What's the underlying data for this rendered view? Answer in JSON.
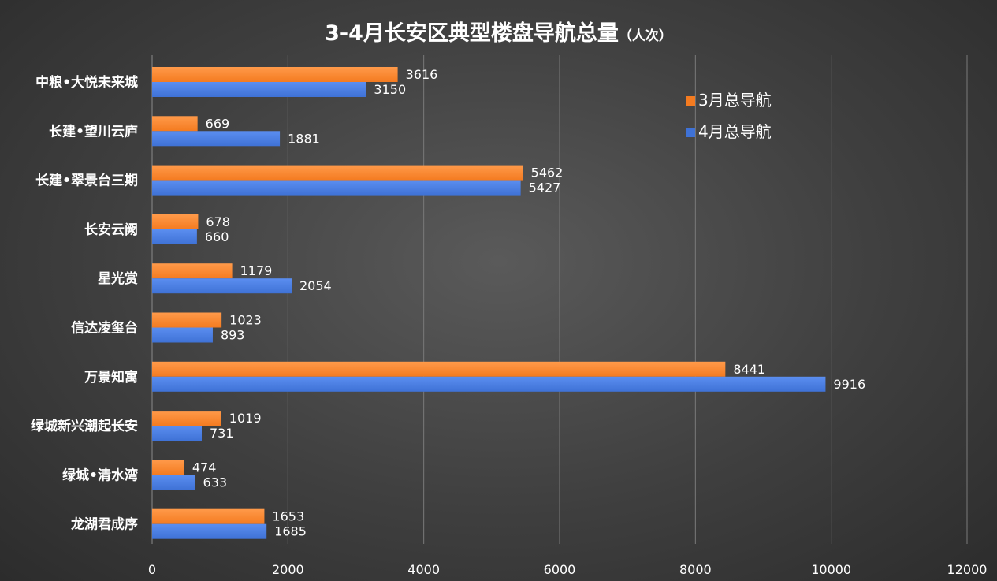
{
  "chart_data": {
    "type": "bar",
    "orientation": "horizontal",
    "title": "3-4月长安区典型楼盘导航总量",
    "title_unit": "（人次）",
    "categories": [
      "中粮•大悦未来城",
      "长建•望川云庐",
      "长建•翠景台三期",
      "长安云阙",
      "星光赏",
      "信达凌玺台",
      "万景知寓",
      "绿城新兴潮起长安",
      "绿城•清水湾",
      "龙湖君成序"
    ],
    "series": [
      {
        "name": "3月总导航",
        "color": "#f47b20",
        "values": [
          3616,
          669,
          5462,
          678,
          1179,
          1023,
          8441,
          1019,
          474,
          1653
        ]
      },
      {
        "name": "4月总导航",
        "color": "#3f72d6",
        "values": [
          3150,
          1881,
          5427,
          660,
          2054,
          893,
          9916,
          731,
          633,
          1685
        ]
      }
    ],
    "xlim": [
      0,
      12000
    ],
    "xticks": [
      0,
      2000,
      4000,
      6000,
      8000,
      10000,
      12000
    ],
    "grid": "vertical",
    "legend": "top-right",
    "data_labels": true
  }
}
